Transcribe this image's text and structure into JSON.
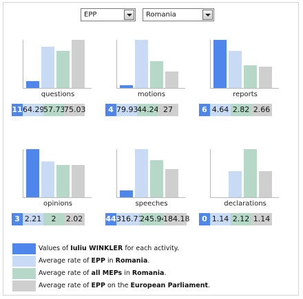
{
  "filters": {
    "group": {
      "value": "EPP"
    },
    "country": {
      "value": "Romania"
    }
  },
  "colors": {
    "member": "#4f86ec",
    "group_country": "#c9daf5",
    "all_country": "#b5d8c9",
    "group_ep": "#cfcfcf"
  },
  "chart_data": [
    {
      "type": "bar",
      "title": "questions",
      "values": [
        11,
        64.29,
        57.73,
        75.03
      ],
      "labels": [
        "11",
        "64.29",
        "57.73",
        "75.03"
      ]
    },
    {
      "type": "bar",
      "title": "motions",
      "values": [
        4,
        79.93,
        44.24,
        27
      ],
      "labels": [
        "4",
        "79.93",
        "44.24",
        "27"
      ]
    },
    {
      "type": "bar",
      "title": "reports",
      "values": [
        6,
        4.64,
        2.82,
        2.66
      ],
      "labels": [
        "6",
        "4.64",
        "2.82",
        "2.66"
      ]
    },
    {
      "type": "bar",
      "title": "opinions",
      "values": [
        3,
        2.21,
        2,
        2.02
      ],
      "labels": [
        "3",
        "2.21",
        "2",
        "2.02"
      ]
    },
    {
      "type": "bar",
      "title": "speeches",
      "values": [
        44,
        316.71,
        245.94,
        184.18
      ],
      "labels": [
        "44",
        "316.71",
        "245.94",
        "184.18"
      ]
    },
    {
      "type": "bar",
      "title": "declarations",
      "values": [
        0,
        1.14,
        2.12,
        1.14
      ],
      "labels": [
        "0",
        "1.14",
        "2.12",
        "1.14"
      ]
    }
  ],
  "legend": [
    {
      "pre": "Values of ",
      "bold1": "Iuliu WINKLER",
      "mid": " for each activity.",
      "bold2": "",
      "post": ""
    },
    {
      "pre": "Average rate of ",
      "bold1": "EPP",
      "mid": " in ",
      "bold2": "Romania",
      "post": "."
    },
    {
      "pre": "Average rate of ",
      "bold1": "all MEPs",
      "mid": " in ",
      "bold2": "Romania",
      "post": "."
    },
    {
      "pre": "Average rate of ",
      "bold1": "EPP",
      "mid": " on the ",
      "bold2": "European Parliament",
      "post": "."
    }
  ]
}
